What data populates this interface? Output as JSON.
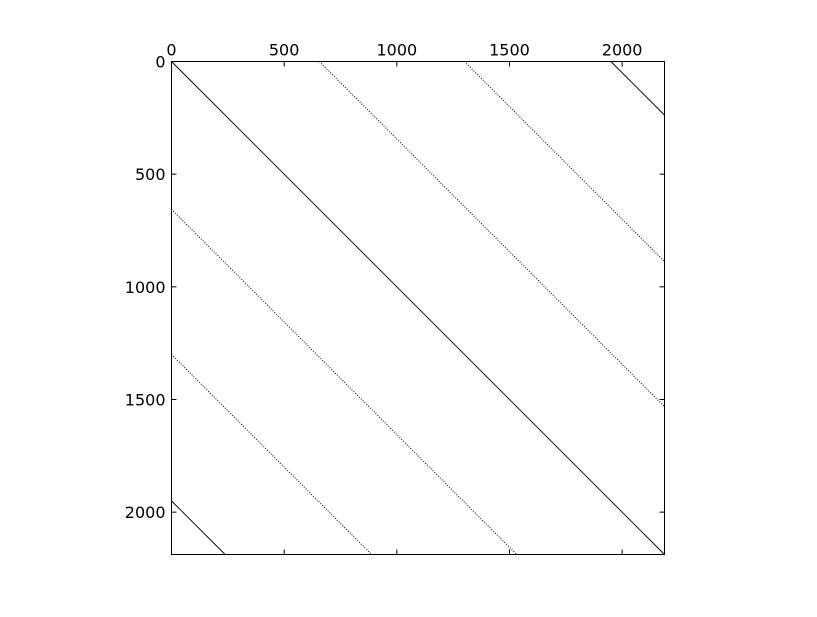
{
  "chart_data": {
    "type": "scatter",
    "subtype": "sparsity-pattern",
    "title": "",
    "xlabel": "",
    "ylabel": "",
    "xlim": [
      0,
      2188
    ],
    "ylim": [
      2188,
      0
    ],
    "x_axis_position": "top",
    "grid": false,
    "matrix_size": 2188,
    "x_ticks": [
      0,
      500,
      1000,
      1500,
      2000
    ],
    "y_ticks": [
      0,
      500,
      1000,
      1500,
      2000
    ],
    "x_tick_labels": [
      "0",
      "500",
      "1000",
      "1500",
      "2000"
    ],
    "y_tick_labels": [
      "0",
      "500",
      "1000",
      "1500",
      "2000"
    ],
    "series": [
      {
        "style": "solid",
        "offset": 0,
        "x": [
          0,
          2188
        ],
        "y": [
          0,
          2188
        ]
      },
      {
        "style": "dotted",
        "offset": 656,
        "x": [
          656,
          2188
        ],
        "y": [
          0,
          1532
        ]
      },
      {
        "style": "dotted",
        "offset": 1300,
        "x": [
          1300,
          2188
        ],
        "y": [
          0,
          888
        ]
      },
      {
        "style": "solid",
        "offset": 1950,
        "x": [
          1950,
          2188
        ],
        "y": [
          0,
          238
        ]
      },
      {
        "style": "dotted",
        "offset": -656,
        "x": [
          0,
          1532
        ],
        "y": [
          656,
          2188
        ]
      },
      {
        "style": "dotted",
        "offset": -1300,
        "x": [
          0,
          888
        ],
        "y": [
          1300,
          2188
        ]
      },
      {
        "style": "solid",
        "offset": -1950,
        "x": [
          0,
          238
        ],
        "y": [
          1950,
          2188
        ]
      }
    ]
  }
}
